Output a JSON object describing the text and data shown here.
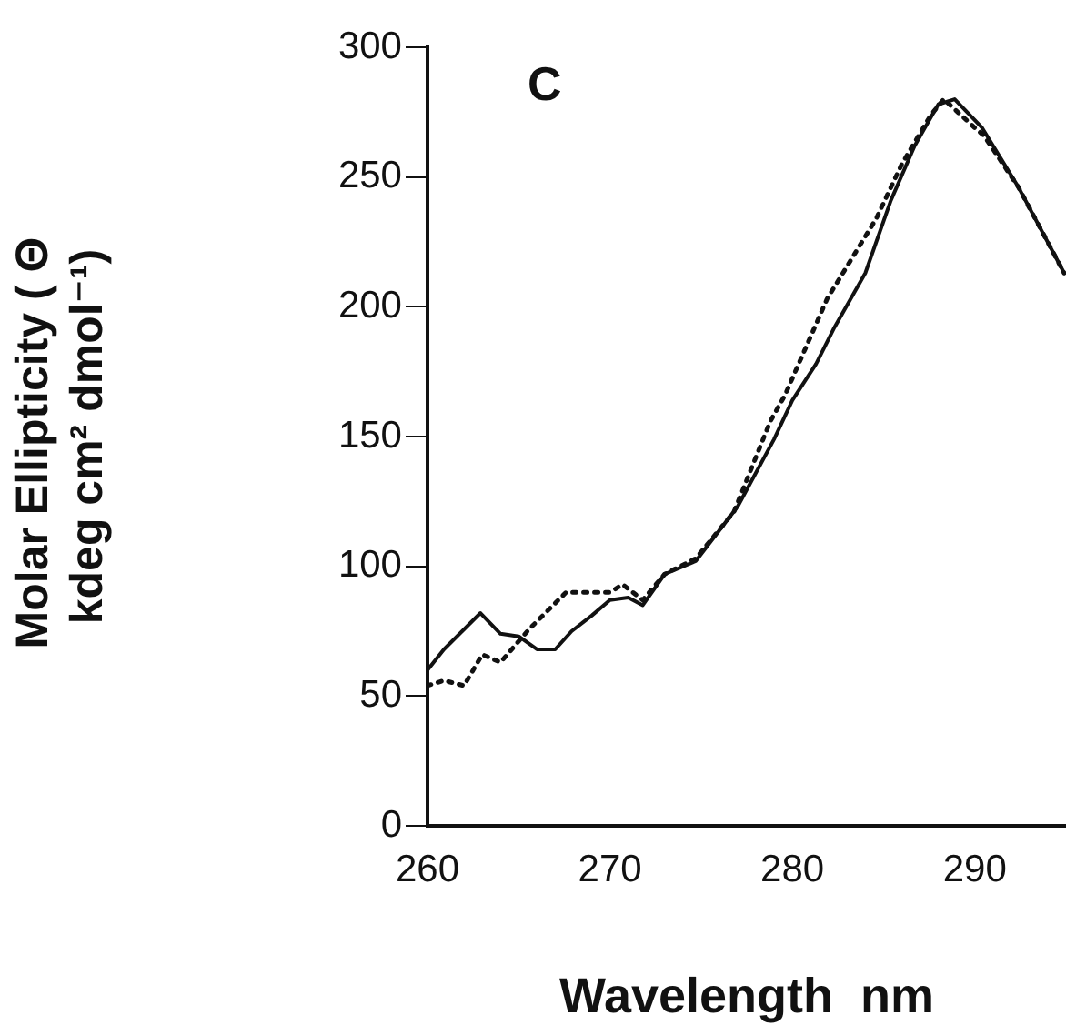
{
  "chart_data": {
    "type": "line",
    "xlabel": "Wavelength  nm",
    "ylabel": "Molar Ellipticity ( Θ kdeg cm² dmol⁻¹)",
    "annotations": [
      "C"
    ],
    "xlim": [
      260,
      295
    ],
    "xticks": [
      260,
      270,
      280,
      290
    ],
    "ylim": [
      0,
      300
    ],
    "yticks": [
      0,
      50,
      100,
      150,
      200,
      250,
      300
    ],
    "grid": false,
    "legend": false,
    "marker": "none",
    "series": [
      {
        "color": "#111111",
        "line_style": "solid",
        "x": [
          260,
          260.9,
          262.9,
          264,
          265,
          266,
          267,
          267.9,
          269,
          270,
          271,
          271.8,
          273,
          274.7,
          277,
          279,
          280,
          281.3,
          282.3,
          284,
          285.4,
          286.7,
          288,
          288.9,
          290.4,
          292.4,
          294.9
        ],
        "values": [
          60,
          68,
          82,
          74,
          73,
          68,
          68,
          75,
          81,
          87,
          88,
          85,
          97,
          102,
          123,
          149,
          164,
          178,
          192,
          213,
          241,
          262,
          278,
          280,
          269,
          246,
          213
        ]
      },
      {
        "color": "#111111",
        "line_style": "dotted",
        "x": [
          260,
          260.9,
          262,
          263,
          264,
          265.6,
          267.6,
          270,
          270.7,
          271.8,
          273,
          274.7,
          276.8,
          278.8,
          279.6,
          281.9,
          284.6,
          286,
          287.6,
          288.3,
          290,
          290.5,
          292.4,
          294.9
        ],
        "values": [
          54,
          56,
          54,
          66,
          63,
          76,
          90,
          90,
          93,
          87,
          97,
          103,
          121,
          156,
          166,
          203,
          234,
          255,
          274,
          280,
          269,
          266,
          246,
          213
        ]
      }
    ]
  }
}
